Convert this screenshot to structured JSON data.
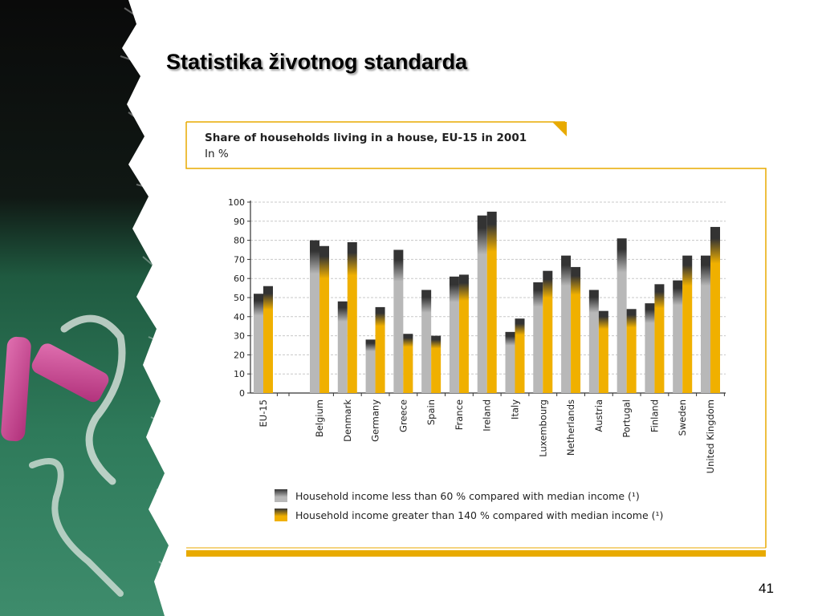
{
  "slide": {
    "title": "Statistika životnog standarda",
    "page_number": "41"
  },
  "colors": {
    "accent_gold": "#e8aa00",
    "low_income_series": "#b8b8b8",
    "high_income_series": "#f0b000",
    "cap_dark": "#333333",
    "gridline": "#c8c8c8"
  },
  "chart_data": {
    "type": "bar",
    "title": "Share of households living in a house, EU-15 in 2001",
    "subtitle": "In %",
    "xlabel": "",
    "ylabel": "",
    "ylim": [
      0,
      100
    ],
    "yticks": [
      0,
      10,
      20,
      30,
      40,
      50,
      60,
      70,
      80,
      90,
      100
    ],
    "grid": true,
    "legend_position": "bottom",
    "categories": [
      "EU-15",
      "Belgium",
      "Denmark",
      "Germany",
      "Greece",
      "Spain",
      "France",
      "Ireland",
      "Italy",
      "Luxembourg",
      "Netherlands",
      "Austria",
      "Portugal",
      "Finland",
      "Sweden",
      "United Kingdom"
    ],
    "series": [
      {
        "name": "Household income less than 60 % compared with median income (¹)",
        "color": "#b8b8b8",
        "values": [
          52,
          80,
          48,
          28,
          75,
          54,
          61,
          93,
          32,
          58,
          72,
          54,
          81,
          47,
          59,
          72
        ]
      },
      {
        "name": "Household income greater than 140 % compared with median income (¹)",
        "color": "#f0b000",
        "values": [
          56,
          77,
          79,
          45,
          31,
          30,
          62,
          95,
          39,
          64,
          66,
          43,
          44,
          57,
          72,
          87
        ]
      }
    ]
  }
}
